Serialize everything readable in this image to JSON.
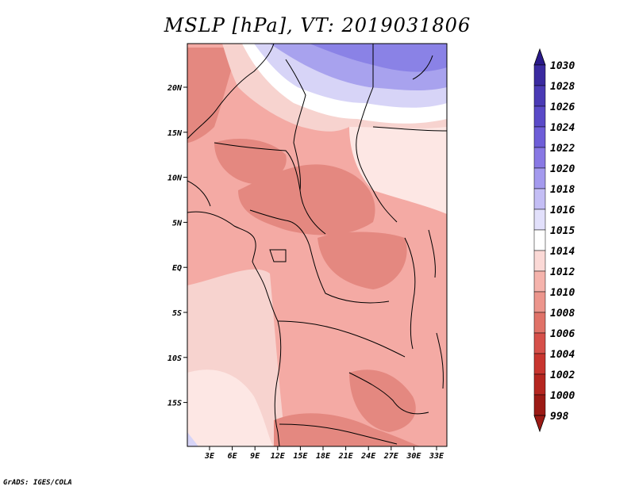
{
  "title": "MSLP [hPa], VT: 2019031806",
  "credit": "GrADS: IGES/COLA",
  "y_labels": [
    "20N",
    "15N",
    "10N",
    "5N",
    "EQ",
    "5S",
    "10S",
    "15S"
  ],
  "x_labels": [
    "3E",
    "6E",
    "9E",
    "12E",
    "15E",
    "18E",
    "21E",
    "24E",
    "27E",
    "30E",
    "33E"
  ],
  "colorbar": {
    "labels": [
      "1030",
      "1028",
      "1026",
      "1024",
      "1022",
      "1020",
      "1018",
      "1016",
      "1015",
      "1014",
      "1012",
      "1010",
      "1008",
      "1006",
      "1004",
      "1002",
      "1000",
      "998"
    ],
    "colors": [
      "#2a1a8a",
      "#3a2aa0",
      "#4a3ab5",
      "#5a4ac8",
      "#6e5ed8",
      "#8878e4",
      "#a49aee",
      "#c4bef5",
      "#e2e0fb",
      "#ffffff",
      "#fbd9d6",
      "#f5b3ac",
      "#ec958c",
      "#e07268",
      "#d6504a",
      "#c8352f",
      "#b52620",
      "#9c1a15"
    ]
  },
  "fill_colors": {
    "ocean_w": "#f7d3cf",
    "mid": "#f4aaa4",
    "deep": "#e48880",
    "lightest": "#fde7e4",
    "white": "#ffffff",
    "blue_light": "#d7d4f7",
    "blue_mid": "#a8a2ee",
    "blue_deep": "#8a82e6"
  }
}
